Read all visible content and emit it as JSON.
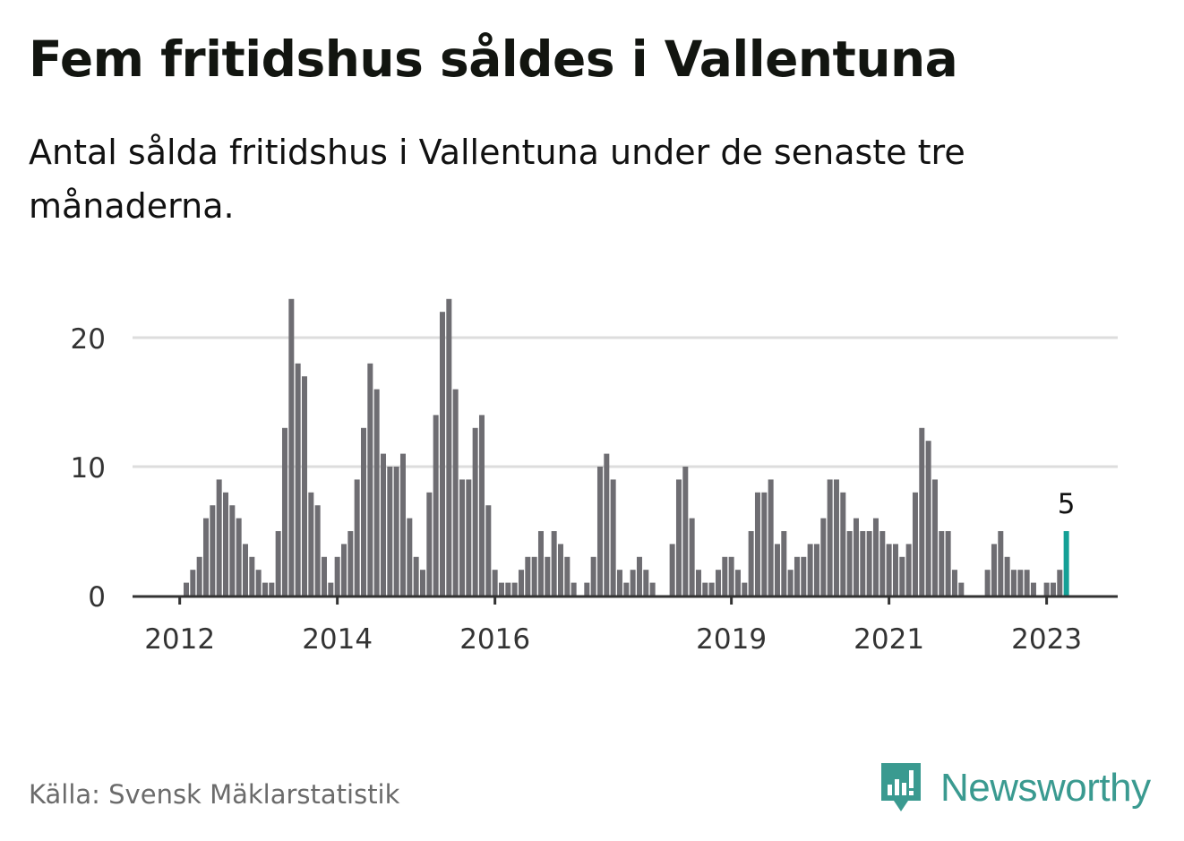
{
  "title": "Fem fritidshus såldes i Vallentuna",
  "subtitle": "Antal sålda fritidshus i Vallentuna under de senaste tre månaderna.",
  "source": "Källa: Svensk Mäklarstatistik",
  "brand": "Newsworthy",
  "colors": {
    "bar": "#6e6d72",
    "highlight": "#14a096",
    "grid": "#dddddd",
    "axis": "#333333",
    "brand": "#3a9a90"
  },
  "chart_data": {
    "type": "bar",
    "start_month": "2012-02",
    "end_month": "2023-04",
    "values": [
      1,
      2,
      3,
      6,
      7,
      9,
      8,
      7,
      6,
      4,
      3,
      2,
      1,
      1,
      5,
      13,
      23,
      18,
      17,
      8,
      7,
      3,
      1,
      3,
      4,
      5,
      9,
      13,
      18,
      16,
      11,
      10,
      10,
      11,
      6,
      3,
      2,
      8,
      14,
      22,
      23,
      16,
      9,
      9,
      13,
      14,
      7,
      2,
      1,
      1,
      1,
      2,
      3,
      3,
      5,
      3,
      5,
      4,
      3,
      1,
      0,
      1,
      3,
      10,
      11,
      9,
      2,
      1,
      2,
      3,
      2,
      1,
      0,
      0,
      4,
      9,
      10,
      6,
      2,
      1,
      1,
      2,
      3,
      3,
      2,
      1,
      5,
      8,
      8,
      9,
      4,
      5,
      2,
      3,
      3,
      4,
      4,
      6,
      9,
      9,
      8,
      5,
      6,
      5,
      5,
      6,
      5,
      4,
      4,
      3,
      4,
      8,
      13,
      12,
      9,
      5,
      5,
      2,
      1,
      0,
      0,
      0,
      2,
      4,
      5,
      3,
      2,
      2,
      2,
      1,
      0,
      1,
      1,
      2,
      5
    ],
    "highlight_index": 134,
    "highlight_label": "5",
    "yticks": [
      0,
      10,
      20
    ],
    "ylim": [
      0,
      24
    ],
    "xticks": [
      {
        "label": "2012",
        "index": -1
      },
      {
        "label": "2014",
        "index": 23
      },
      {
        "label": "2016",
        "index": 47
      },
      {
        "label": "2019",
        "index": 83
      },
      {
        "label": "2021",
        "index": 107
      },
      {
        "label": "2023",
        "index": 131
      }
    ],
    "grid": true,
    "xlabel": "",
    "ylabel": ""
  }
}
